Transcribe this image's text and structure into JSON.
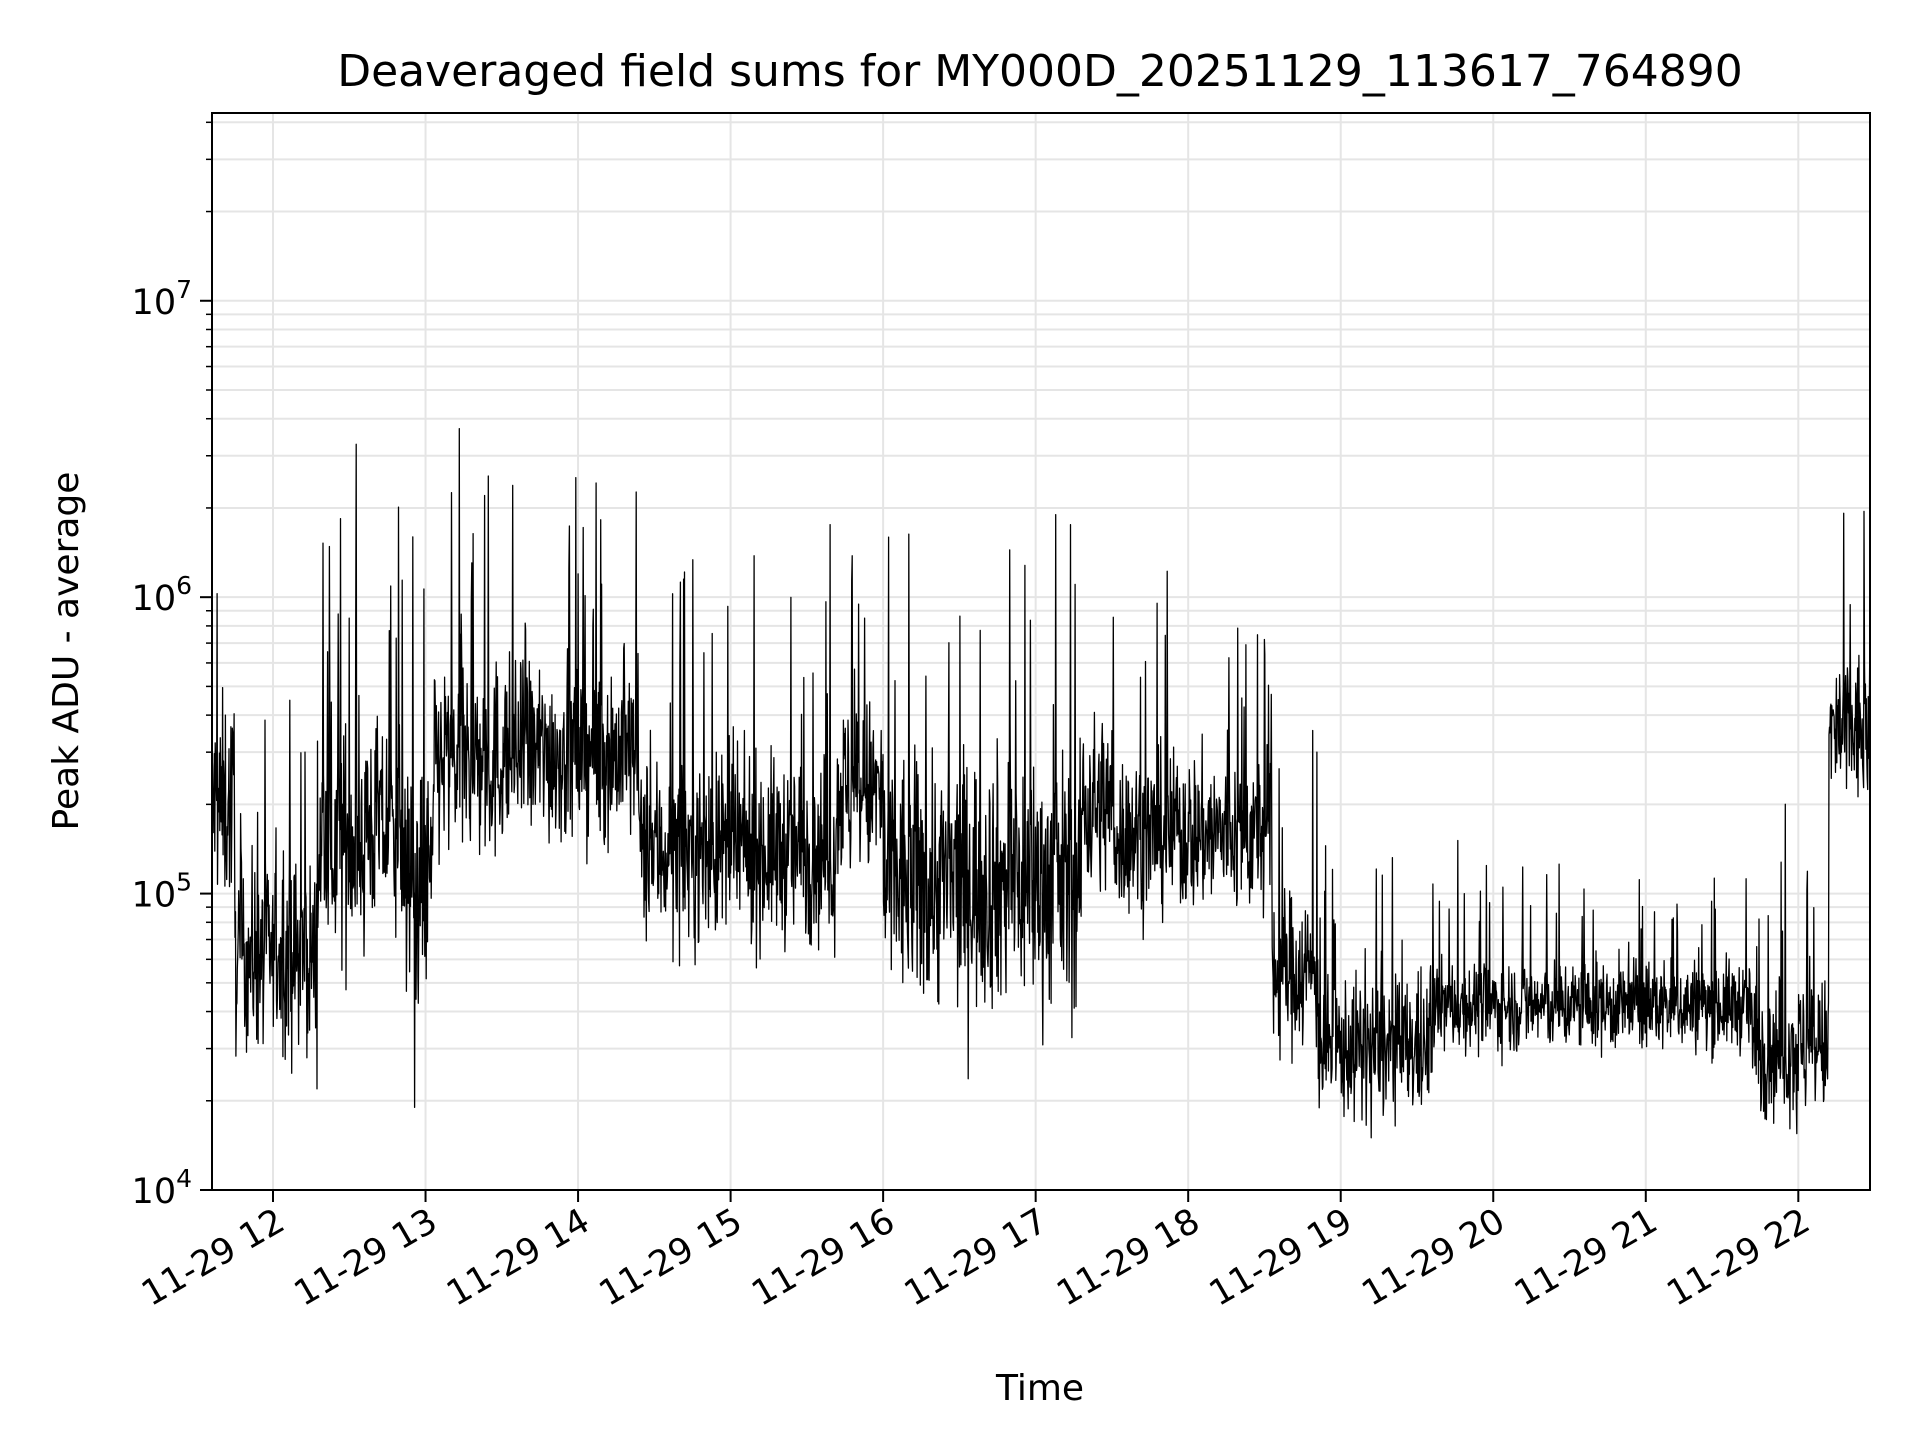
{
  "chart_data": {
    "type": "line",
    "title": "Deaveraged field sums for MY000D_20251129_113617_764890",
    "xlabel": "Time",
    "ylabel": "Peak ADU - average",
    "yscale": "log",
    "ylim": [
      10000,
      43000000
    ],
    "xlim_hours": [
      11.6,
      22.47
    ],
    "grid": "on",
    "line_color": "#000000",
    "grid_color": "#e5e5e5",
    "x_ticks": [
      {
        "hour": 12,
        "label": "11-29 12"
      },
      {
        "hour": 13,
        "label": "11-29 13"
      },
      {
        "hour": 14,
        "label": "11-29 14"
      },
      {
        "hour": 15,
        "label": "11-29 15"
      },
      {
        "hour": 16,
        "label": "11-29 16"
      },
      {
        "hour": 17,
        "label": "11-29 17"
      },
      {
        "hour": 18,
        "label": "11-29 18"
      },
      {
        "hour": 19,
        "label": "11-29 19"
      },
      {
        "hour": 20,
        "label": "11-29 20"
      },
      {
        "hour": 21,
        "label": "11-29 21"
      },
      {
        "hour": 22,
        "label": "11-29 22"
      }
    ],
    "y_ticks": [
      {
        "value": 10000,
        "base": "10",
        "exp": "4"
      },
      {
        "value": 100000,
        "base": "10",
        "exp": "5"
      },
      {
        "value": 1000000,
        "base": "10",
        "exp": "6"
      },
      {
        "value": 10000000,
        "base": "10",
        "exp": "7"
      }
    ],
    "series": [
      {
        "name": "Peak ADU - average",
        "segments": [
          {
            "start": 11.6,
            "end": 11.75,
            "median": 200000,
            "spread": 0.45
          },
          {
            "start": 11.75,
            "end": 12.3,
            "median": 62000,
            "spread": 0.4
          },
          {
            "start": 12.3,
            "end": 12.6,
            "median": 150000,
            "spread": 0.5
          },
          {
            "start": 12.6,
            "end": 12.85,
            "median": 170000,
            "spread": 0.45
          },
          {
            "start": 12.85,
            "end": 13.05,
            "median": 110000,
            "spread": 0.5
          },
          {
            "start": 13.05,
            "end": 13.5,
            "median": 280000,
            "spread": 0.45
          },
          {
            "start": 13.5,
            "end": 14.4,
            "median": 300000,
            "spread": 0.4
          },
          {
            "start": 14.4,
            "end": 15.7,
            "median": 140000,
            "spread": 0.4
          },
          {
            "start": 15.7,
            "end": 16.0,
            "median": 220000,
            "spread": 0.4
          },
          {
            "start": 16.0,
            "end": 17.3,
            "median": 110000,
            "spread": 0.55
          },
          {
            "start": 17.3,
            "end": 17.5,
            "median": 200000,
            "spread": 0.4
          },
          {
            "start": 17.5,
            "end": 18.55,
            "median": 160000,
            "spread": 0.35
          },
          {
            "start": 18.55,
            "end": 18.85,
            "median": 55000,
            "spread": 0.35
          },
          {
            "start": 18.85,
            "end": 19.6,
            "median": 30000,
            "spread": 0.3
          },
          {
            "start": 19.6,
            "end": 21.7,
            "median": 42000,
            "spread": 0.2
          },
          {
            "start": 21.7,
            "end": 22.2,
            "median": 30000,
            "spread": 0.3
          },
          {
            "start": 22.2,
            "end": 22.47,
            "median": 350000,
            "spread": 0.35
          }
        ],
        "peaks": [
          {
            "hour": 12.5,
            "value": 850000
          },
          {
            "hour": 13.3,
            "value": 980000
          },
          {
            "hour": 14.1,
            "value": 910000
          },
          {
            "hour": 15.88,
            "value": 850000
          },
          {
            "hour": 16.93,
            "value": 1280000
          },
          {
            "hour": 18.5,
            "value": 720000
          },
          {
            "hour": 22.47,
            "value": 820000
          }
        ],
        "dips": [
          {
            "hour": 12.93,
            "value": 19000
          },
          {
            "hour": 19.2,
            "value": 15000
          },
          {
            "hour": 21.99,
            "value": 15500
          }
        ]
      }
    ]
  }
}
